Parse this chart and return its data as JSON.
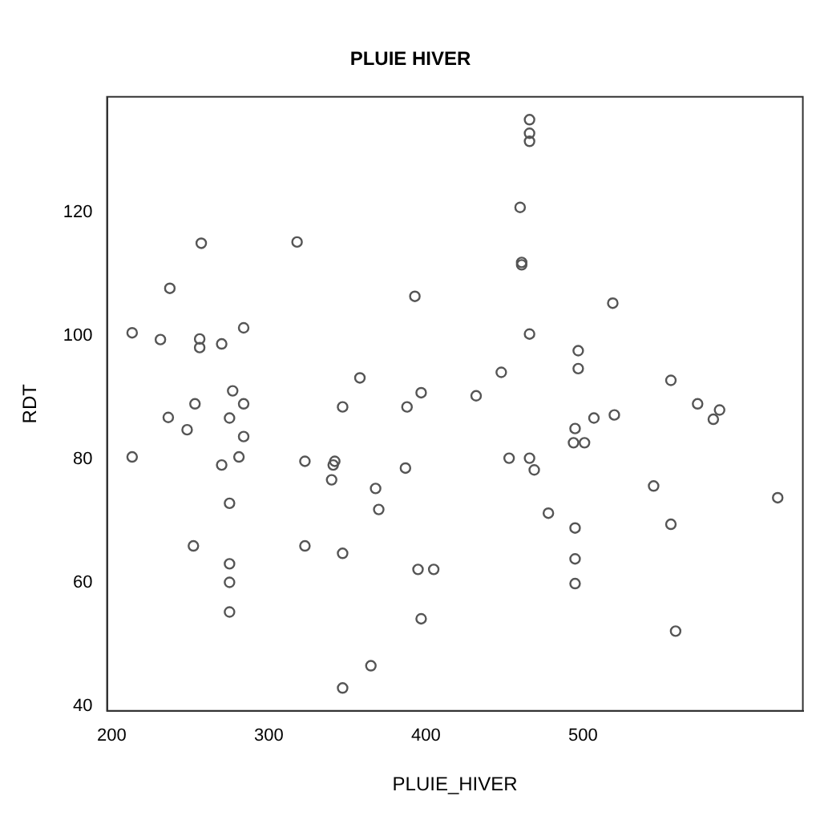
{
  "chart_data": {
    "type": "scatter",
    "title": "PLUIE HIVER",
    "xlabel": "PLUIE_HIVER",
    "ylabel": "RDT",
    "marker": "circle",
    "grid": false,
    "legend": false,
    "xlim": [
      197,
      640
    ],
    "ylim": [
      39.3,
      138.7
    ],
    "xticks": [
      200,
      300,
      400,
      500
    ],
    "yticks": [
      40,
      60,
      80,
      100,
      120
    ],
    "series": [
      {
        "color": "#555555",
        "x": [
          257,
          318,
          237,
          393,
          213,
          231,
          256,
          256,
          270,
          284,
          358,
          277,
          397,
          253,
          284,
          347,
          388,
          236,
          275,
          466,
          466,
          466,
          460,
          461,
          461,
          519,
          466,
          497,
          497,
          448,
          556,
          432,
          573,
          587,
          583,
          507,
          520,
          248,
          284,
          213,
          281,
          270,
          323,
          342,
          341,
          340,
          368,
          370,
          387,
          275,
          252,
          323,
          347,
          275,
          275,
          395,
          405,
          275,
          397,
          365,
          347,
          495,
          494,
          501,
          453,
          466,
          469,
          545,
          624,
          478,
          495,
          556,
          495,
          495,
          559
        ],
        "values": [
          115,
          115.2,
          107.7,
          106.4,
          100.5,
          99.4,
          99.5,
          98.1,
          98.7,
          101.3,
          93.2,
          91.1,
          90.8,
          89,
          89,
          88.5,
          88.5,
          86.8,
          86.7,
          135,
          132.8,
          131.5,
          120.8,
          111.9,
          111.5,
          105.3,
          100.3,
          97.6,
          94.7,
          94.1,
          92.8,
          90.3,
          89,
          88,
          86.5,
          86.7,
          87.2,
          84.8,
          83.7,
          80.4,
          80.4,
          79.1,
          79.7,
          79.7,
          79.1,
          76.7,
          75.3,
          71.9,
          78.6,
          72.9,
          66,
          66,
          64.8,
          63.1,
          60.1,
          62.2,
          62.2,
          55.3,
          54.2,
          46.6,
          43,
          85,
          82.7,
          82.7,
          80.2,
          80.2,
          78.3,
          75.7,
          73.8,
          71.3,
          68.9,
          69.5,
          63.9,
          59.9,
          52.2
        ]
      }
    ]
  }
}
